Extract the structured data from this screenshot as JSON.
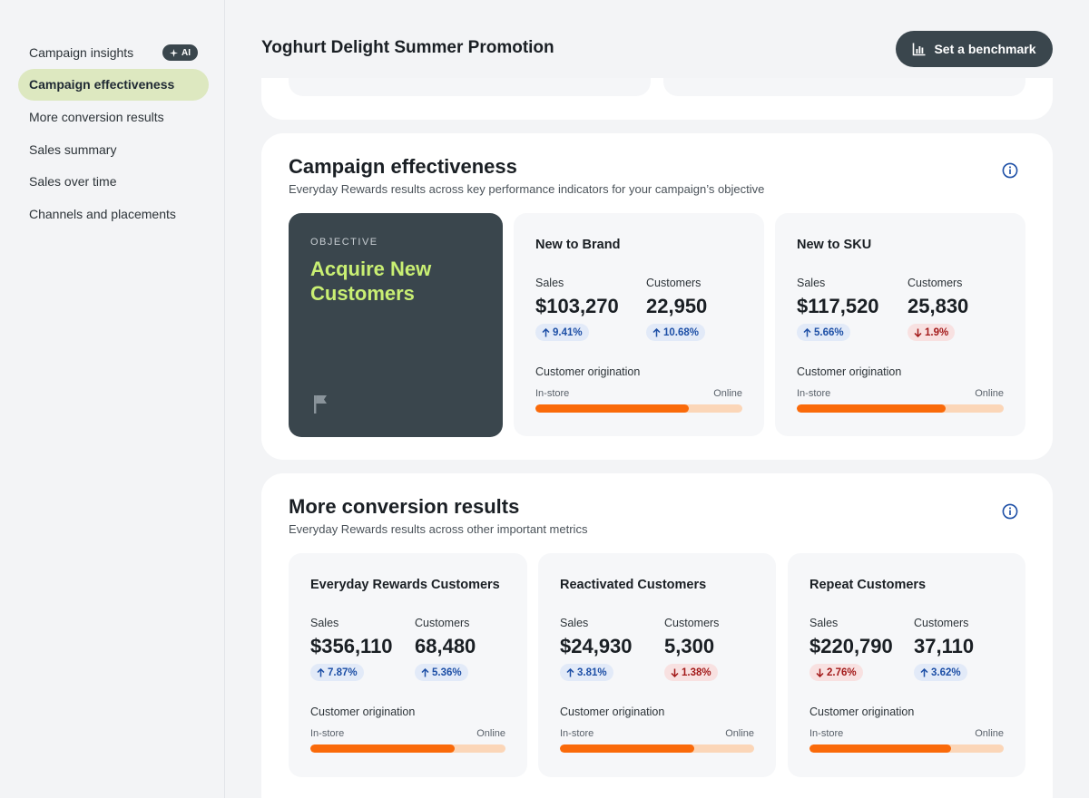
{
  "sidebar": {
    "items": [
      {
        "label": "Campaign insights",
        "badge": "AI",
        "active": false,
        "name": "sidebar-item-campaign-insights"
      },
      {
        "label": "Campaign effectiveness",
        "active": true,
        "name": "sidebar-item-campaign-effectiveness"
      },
      {
        "label": "More conversion results",
        "active": false,
        "name": "sidebar-item-more-conversion-results"
      },
      {
        "label": "Sales summary",
        "active": false,
        "name": "sidebar-item-sales-summary"
      },
      {
        "label": "Sales over time",
        "active": false,
        "name": "sidebar-item-sales-over-time"
      },
      {
        "label": "Channels and placements",
        "active": false,
        "name": "sidebar-item-channels-and-placements"
      }
    ]
  },
  "header": {
    "title": "Yoghurt Delight Summer Promotion",
    "benchmark_label": "Set a benchmark",
    "benchmark_icon": "bar-chart-icon"
  },
  "colors": {
    "accent_dark": "#3a464d",
    "objective_green": "#c9ef73",
    "bar_instore": "#fa6a0a",
    "bar_online": "#fbd6b8",
    "up_text": "#1d4fa6",
    "down_text": "#a31a1a"
  },
  "effectiveness": {
    "title": "Campaign effectiveness",
    "subtitle": "Everyday Rewards results across key performance indicators for your campaign’s objective",
    "objective_label": "OBJECTIVE",
    "objective_value": "Acquire New Customers",
    "cards": [
      {
        "title": "New to Brand",
        "sales_label": "Sales",
        "sales_value": "$103,270",
        "sales_change": "9.41%",
        "sales_dir": "up",
        "customers_label": "Customers",
        "customers_value": "22,950",
        "customers_change": "10.68%",
        "customers_dir": "up",
        "orig_title": "Customer origination",
        "instore_label": "In-store",
        "online_label": "Online",
        "instore_share": 0.74
      },
      {
        "title": "New to SKU",
        "sales_label": "Sales",
        "sales_value": "$117,520",
        "sales_change": "5.66%",
        "sales_dir": "up",
        "customers_label": "Customers",
        "customers_value": "25,830",
        "customers_change": "1.9%",
        "customers_dir": "down",
        "orig_title": "Customer origination",
        "instore_label": "In-store",
        "online_label": "Online",
        "instore_share": 0.72
      }
    ]
  },
  "conversion": {
    "title": "More conversion results",
    "subtitle": "Everyday Rewards results across other important metrics",
    "cards": [
      {
        "title": "Everyday Rewards Customers",
        "sales_label": "Sales",
        "sales_value": "$356,110",
        "sales_change": "7.87%",
        "sales_dir": "up",
        "customers_label": "Customers",
        "customers_value": "68,480",
        "customers_change": "5.36%",
        "customers_dir": "up",
        "orig_title": "Customer origination",
        "instore_label": "In-store",
        "online_label": "Online",
        "instore_share": 0.74
      },
      {
        "title": "Reactivated Customers",
        "sales_label": "Sales",
        "sales_value": "$24,930",
        "sales_change": "3.81%",
        "sales_dir": "up",
        "customers_label": "Customers",
        "customers_value": "5,300",
        "customers_change": "1.38%",
        "customers_dir": "down",
        "orig_title": "Customer origination",
        "instore_label": "In-store",
        "online_label": "Online",
        "instore_share": 0.69
      },
      {
        "title": "Repeat Customers",
        "sales_label": "Sales",
        "sales_value": "$220,790",
        "sales_change": "2.76%",
        "sales_dir": "down",
        "customers_label": "Customers",
        "customers_value": "37,110",
        "customers_change": "3.62%",
        "customers_dir": "up",
        "orig_title": "Customer origination",
        "instore_label": "In-store",
        "online_label": "Online",
        "instore_share": 0.73
      }
    ]
  }
}
